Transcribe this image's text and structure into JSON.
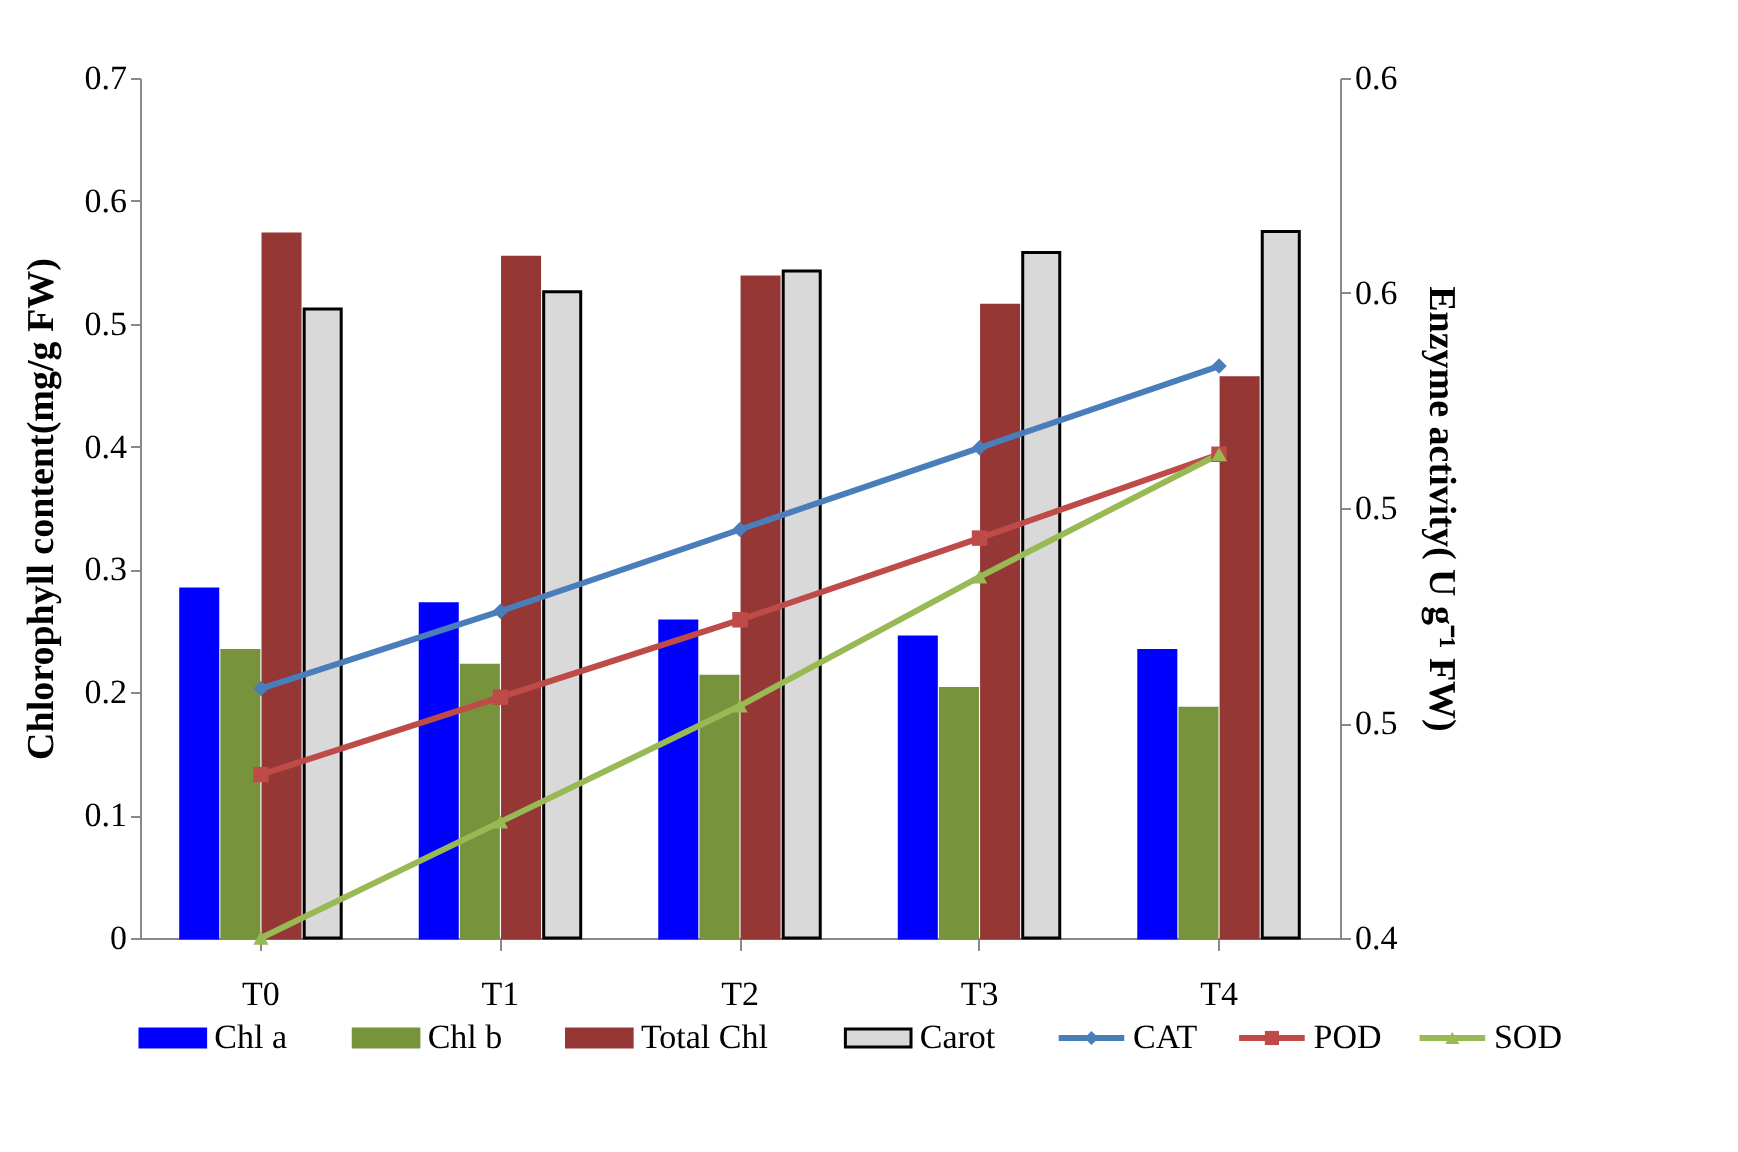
{
  "chart_data": {
    "type": "bar",
    "ylabel": "Chlorophyll content(mg/g FW)",
    "y2label": "Enzyme activity( U g⁻¹ FW)",
    "categories": [
      "T0",
      "T1",
      "T2",
      "T3",
      "T4"
    ],
    "ylim": [
      0,
      0.7
    ],
    "yticks": [
      0,
      0.1,
      0.2,
      0.3,
      0.4,
      0.5,
      0.6,
      0.7
    ],
    "y2lim": [
      0.4,
      0.6
    ],
    "y2ticks": [
      0.4,
      {
        "value": 0.45,
        "label": "0.5"
      },
      0.5,
      {
        "value": 0.55,
        "label": "0.6"
      },
      0.6
    ],
    "legend": "bottom",
    "grid": false,
    "series": [
      {
        "name": "Chl a",
        "color": "#0000ff",
        "values": [
          0.284,
          0.272,
          0.258,
          0.245,
          0.234
        ]
      },
      {
        "name": "Chl b",
        "color": "#77933c",
        "values": [
          0.234,
          0.222,
          0.213,
          0.203,
          0.187
        ]
      },
      {
        "name": "Total Chl",
        "color": "#953735",
        "values": [
          0.573,
          0.554,
          0.538,
          0.515,
          0.456
        ]
      },
      {
        "name": "Carot",
        "color": "#d9d9d9",
        "values": [
          0.512,
          0.526,
          0.543,
          0.558,
          0.575
        ]
      },
      {
        "name": "CAT",
        "type": "line",
        "axis": "y2",
        "marker": "diamond",
        "color": "#4a7ebb",
        "values": [
          0.458,
          0.476,
          0.495,
          0.514,
          0.533
        ]
      },
      {
        "name": "POD",
        "type": "line",
        "axis": "y2",
        "marker": "square",
        "color": "#be4b48",
        "values": [
          0.438,
          0.456,
          0.474,
          0.493,
          0.5125
        ]
      },
      {
        "name": "SOD",
        "type": "line",
        "axis": "y2",
        "marker": "triangle",
        "color": "#98b954",
        "values": [
          0.4,
          0.427,
          0.454,
          0.484,
          0.5125
        ]
      }
    ]
  }
}
